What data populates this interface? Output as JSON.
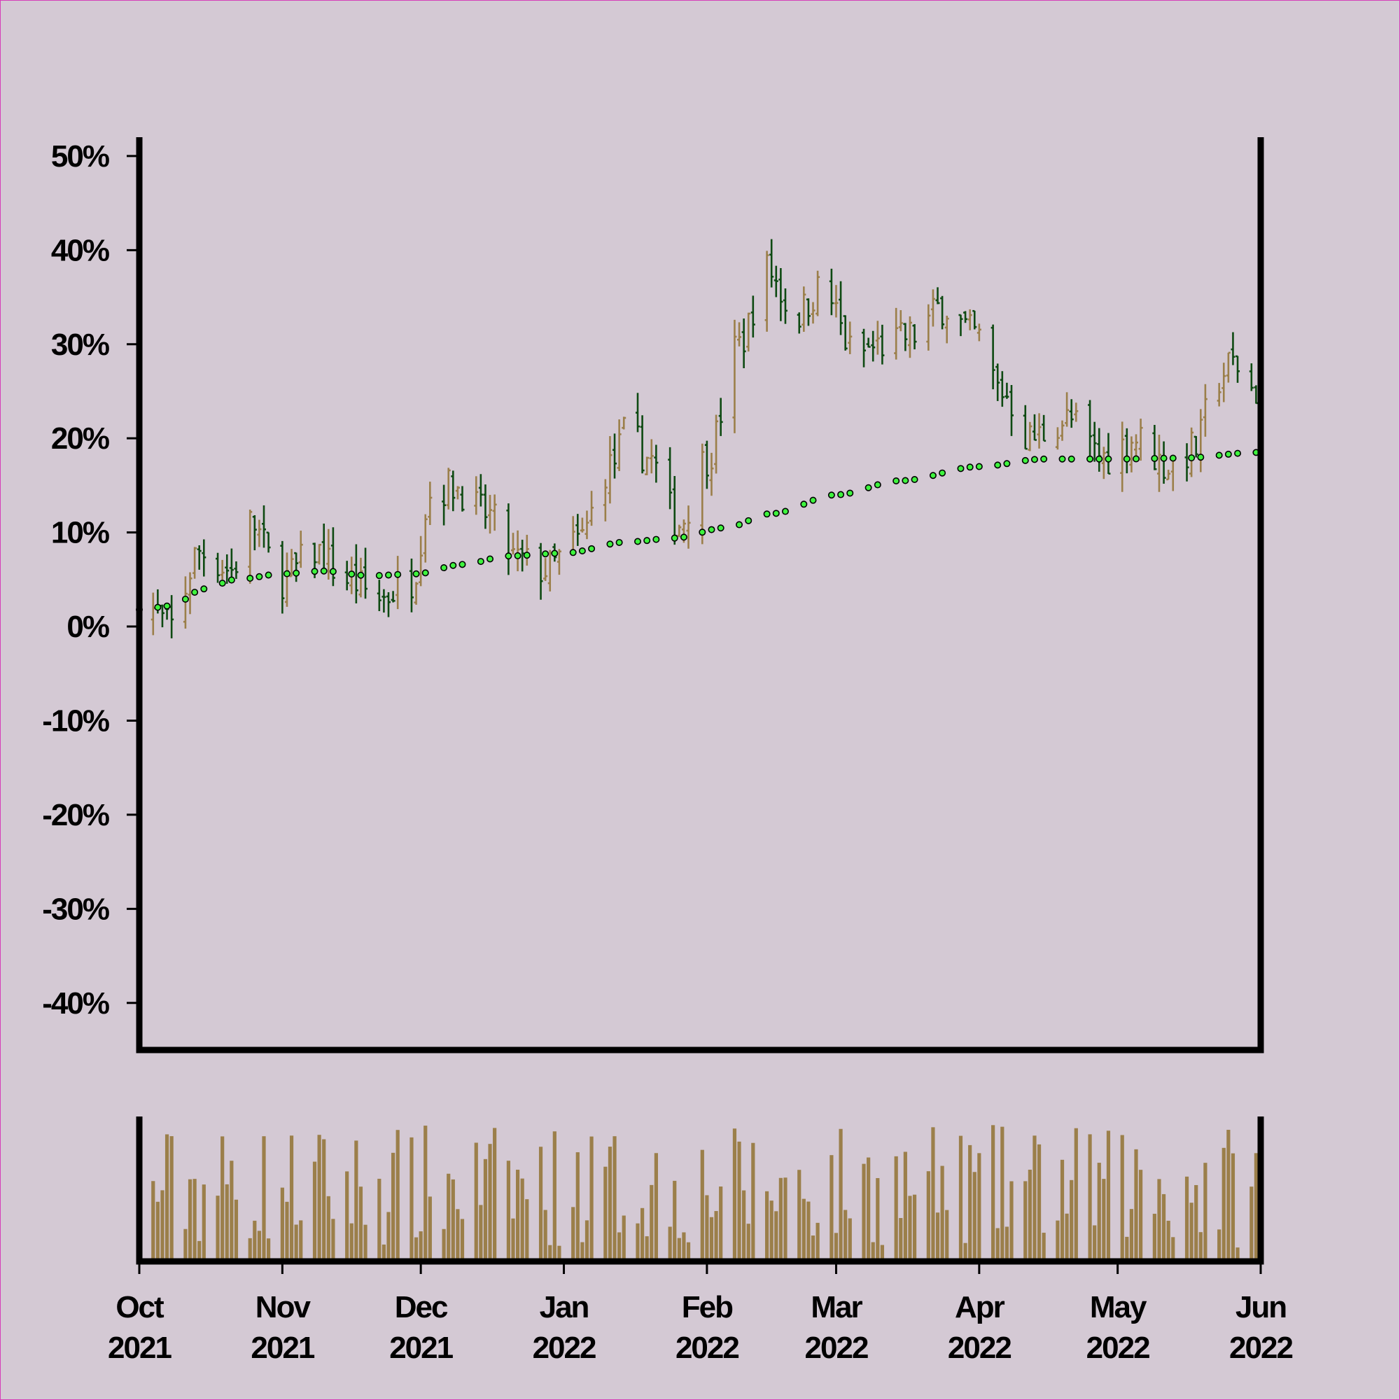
{
  "chart_data": {
    "type": "ohlc",
    "title": "",
    "xlabel": "",
    "ylabel": "",
    "y_format": "percent",
    "ylim": [
      -45,
      52
    ],
    "y_ticks": [
      "50%",
      "40%",
      "30%",
      "20%",
      "10%",
      "0%",
      "-10%",
      "-20%",
      "-30%",
      "-40%"
    ],
    "y_tick_values": [
      50,
      40,
      30,
      20,
      10,
      0,
      -10,
      -20,
      -30,
      -40
    ],
    "x_range": [
      "2021-10-01",
      "2022-06-01"
    ],
    "x_ticks": [
      {
        "month": "Oct",
        "year": "2021"
      },
      {
        "month": "Nov",
        "year": "2021"
      },
      {
        "month": "Dec",
        "year": "2021"
      },
      {
        "month": "Jan",
        "year": "2022"
      },
      {
        "month": "Feb",
        "year": "2022"
      },
      {
        "month": "Mar",
        "year": "2022"
      },
      {
        "month": "Apr",
        "year": "2022"
      },
      {
        "month": "May",
        "year": "2022"
      },
      {
        "month": "Jun",
        "year": "2022"
      }
    ],
    "x_tick_dates": [
      "2021-10-01",
      "2021-11-01",
      "2021-12-01",
      "2022-01-01",
      "2022-02-01",
      "2022-03-01",
      "2022-04-01",
      "2022-05-01",
      "2022-06-01"
    ],
    "trend_keypoints": [
      [
        "2021-10-01",
        1.8
      ],
      [
        "2021-10-08",
        2.2
      ],
      [
        "2021-10-15",
        4.0
      ],
      [
        "2021-10-22",
        5.0
      ],
      [
        "2021-11-01",
        5.6
      ],
      [
        "2021-11-10",
        5.9
      ],
      [
        "2021-11-20",
        5.4
      ],
      [
        "2021-11-30",
        5.6
      ],
      [
        "2021-12-10",
        6.6
      ],
      [
        "2021-12-20",
        7.5
      ],
      [
        "2022-01-01",
        7.8
      ],
      [
        "2022-01-15",
        9.0
      ],
      [
        "2022-01-25",
        9.4
      ],
      [
        "2022-02-05",
        10.5
      ],
      [
        "2022-02-15",
        12.0
      ],
      [
        "2022-03-01",
        14.0
      ],
      [
        "2022-03-15",
        15.5
      ],
      [
        "2022-04-01",
        17.0
      ],
      [
        "2022-04-15",
        17.8
      ],
      [
        "2022-05-01",
        17.8
      ],
      [
        "2022-05-15",
        17.9
      ],
      [
        "2022-05-31",
        18.5
      ]
    ],
    "close_keypoints": [
      [
        "2021-10-01",
        3
      ],
      [
        "2021-10-08",
        0
      ],
      [
        "2021-10-14",
        8
      ],
      [
        "2021-10-21",
        6
      ],
      [
        "2021-10-25",
        11
      ],
      [
        "2021-11-01",
        5
      ],
      [
        "2021-11-08",
        8
      ],
      [
        "2021-11-15",
        5
      ],
      [
        "2021-11-22",
        3
      ],
      [
        "2021-11-29",
        5
      ],
      [
        "2021-12-03",
        14
      ],
      [
        "2021-12-08",
        15
      ],
      [
        "2021-12-15",
        12
      ],
      [
        "2021-12-22",
        7
      ],
      [
        "2021-12-28",
        6
      ],
      [
        "2022-01-04",
        9
      ],
      [
        "2022-01-11",
        17
      ],
      [
        "2022-01-15",
        21
      ],
      [
        "2022-01-19",
        18
      ],
      [
        "2022-01-26",
        11
      ],
      [
        "2022-02-01",
        18
      ],
      [
        "2022-02-08",
        30
      ],
      [
        "2022-02-14",
        38
      ],
      [
        "2022-02-20",
        33
      ],
      [
        "2022-02-26",
        36
      ],
      [
        "2022-03-05",
        29
      ],
      [
        "2022-03-12",
        30
      ],
      [
        "2022-03-18",
        31
      ],
      [
        "2022-03-24",
        34
      ],
      [
        "2022-03-31",
        31
      ],
      [
        "2022-04-06",
        25
      ],
      [
        "2022-04-12",
        20
      ],
      [
        "2022-04-20",
        22
      ],
      [
        "2022-04-28",
        18
      ],
      [
        "2022-05-05",
        20
      ],
      [
        "2022-05-12",
        17
      ],
      [
        "2022-05-18",
        19
      ],
      [
        "2022-05-22",
        26
      ],
      [
        "2022-05-26",
        28
      ],
      [
        "2022-05-31",
        25
      ]
    ],
    "volume_relative_range": [
      0.1,
      1.0
    ],
    "colors": {
      "background": "#d4c9d4",
      "up": "#9b7f4a",
      "down": "#0e4a12",
      "trend_fill": "#3ef33e",
      "trend_stroke": "#000000",
      "volume": "#9b7f4a",
      "axis": "#000000",
      "border": "#d63fb8"
    }
  }
}
